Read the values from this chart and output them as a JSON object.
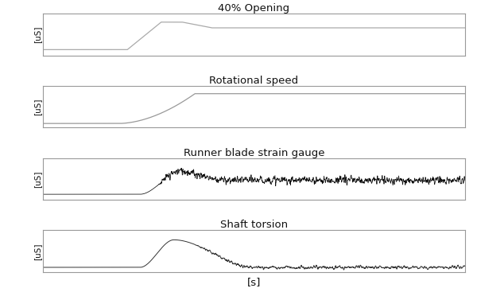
{
  "title_opening": "40% Opening",
  "title_rotational": "Rotational speed",
  "title_strain": "Runner blade strain gauge",
  "title_torsion": "Shaft torsion",
  "ylabel": "[uS]",
  "xlabel": "[s]",
  "fig_width": 6.0,
  "fig_height": 3.72,
  "dpi": 100,
  "background_color": "#ffffff",
  "line_color_opening": "#aaaaaa",
  "line_color_rotational": "#999999",
  "line_color_strain": "#111111",
  "line_color_torsion": "#333333",
  "border_color": "#999999",
  "title_fontsize": 9.5,
  "ylabel_fontsize": 7.5,
  "xlabel_fontsize": 9.5
}
